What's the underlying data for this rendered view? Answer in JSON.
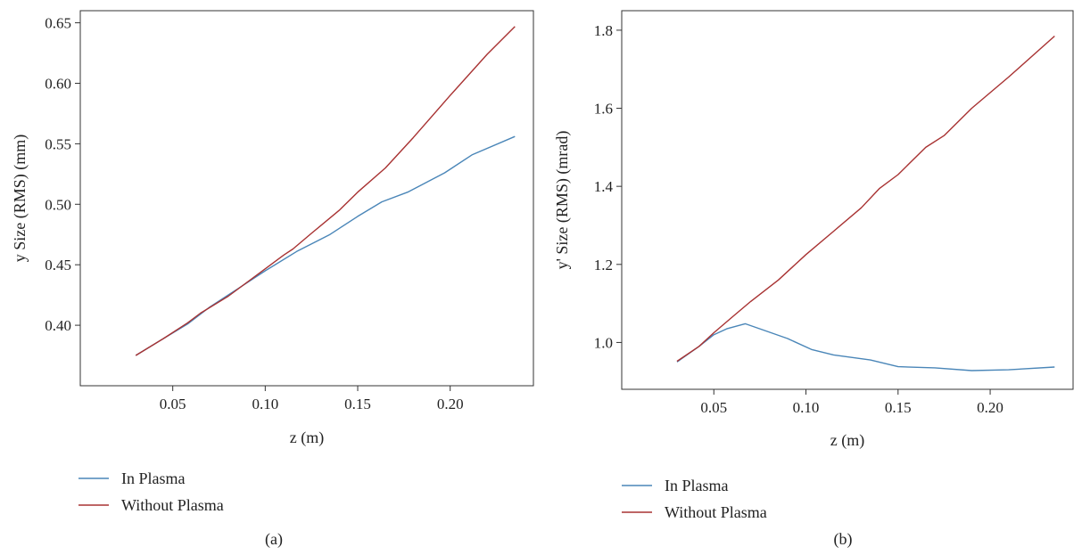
{
  "chart_data": [
    {
      "type": "line",
      "caption": "(a)",
      "xlabel": "z (m)",
      "ylabel": "y Size (RMS) (mm)",
      "xlim": [
        0.0,
        0.245
      ],
      "ylim": [
        0.35,
        0.66
      ],
      "xticks": [
        {
          "value": 0.05,
          "label": "0.05"
        },
        {
          "value": 0.1,
          "label": "0.10"
        },
        {
          "value": 0.15,
          "label": "0.15"
        },
        {
          "value": 0.2,
          "label": "0.20"
        }
      ],
      "yticks": [
        {
          "value": 0.4,
          "label": "0.40"
        },
        {
          "value": 0.45,
          "label": "0.45"
        },
        {
          "value": 0.5,
          "label": "0.50"
        },
        {
          "value": 0.55,
          "label": "0.55"
        },
        {
          "value": 0.6,
          "label": "0.60"
        },
        {
          "value": 0.65,
          "label": "0.65"
        }
      ],
      "grid": false,
      "legend_position": "bottom-left, outside plot",
      "series": [
        {
          "name": "In Plasma",
          "color": "#4a86b8",
          "x": [
            0.03,
            0.045,
            0.058,
            0.07,
            0.085,
            0.1,
            0.117,
            0.135,
            0.15,
            0.163,
            0.177,
            0.197,
            0.212,
            0.235
          ],
          "y": [
            0.375,
            0.389,
            0.401,
            0.415,
            0.43,
            0.445,
            0.461,
            0.475,
            0.49,
            0.502,
            0.51,
            0.526,
            0.541,
            0.556
          ]
        },
        {
          "name": "Without Plasma",
          "color": "#a83232",
          "x": [
            0.03,
            0.045,
            0.058,
            0.065,
            0.08,
            0.095,
            0.11,
            0.115,
            0.125,
            0.14,
            0.15,
            0.165,
            0.18,
            0.2,
            0.22,
            0.235
          ],
          "y": [
            0.375,
            0.389,
            0.402,
            0.41,
            0.424,
            0.441,
            0.458,
            0.463,
            0.476,
            0.495,
            0.51,
            0.53,
            0.555,
            0.59,
            0.624,
            0.647
          ]
        }
      ]
    },
    {
      "type": "line",
      "caption": "(b)",
      "xlabel": "z (m)",
      "ylabel": "y' Size (RMS) (mrad)",
      "xlim": [
        0.0,
        0.245
      ],
      "ylim": [
        0.88,
        1.85
      ],
      "xticks": [
        {
          "value": 0.05,
          "label": "0.05"
        },
        {
          "value": 0.1,
          "label": "0.10"
        },
        {
          "value": 0.15,
          "label": "0.15"
        },
        {
          "value": 0.2,
          "label": "0.20"
        }
      ],
      "yticks": [
        {
          "value": 1.0,
          "label": "1.0"
        },
        {
          "value": 1.2,
          "label": "1.2"
        },
        {
          "value": 1.4,
          "label": "1.4"
        },
        {
          "value": 1.6,
          "label": "1.6"
        },
        {
          "value": 1.8,
          "label": "1.8"
        }
      ],
      "grid": false,
      "legend_position": "bottom-left, outside plot",
      "series": [
        {
          "name": "In Plasma",
          "color": "#4a86b8",
          "x": [
            0.03,
            0.042,
            0.05,
            0.057,
            0.067,
            0.075,
            0.09,
            0.103,
            0.115,
            0.135,
            0.15,
            0.17,
            0.19,
            0.21,
            0.235
          ],
          "y": [
            0.95,
            0.99,
            1.02,
            1.035,
            1.048,
            1.035,
            1.01,
            0.982,
            0.968,
            0.955,
            0.938,
            0.935,
            0.928,
            0.93,
            0.937
          ]
        },
        {
          "name": "Without Plasma",
          "color": "#a83232",
          "x": [
            0.03,
            0.042,
            0.05,
            0.06,
            0.07,
            0.085,
            0.1,
            0.115,
            0.13,
            0.14,
            0.15,
            0.165,
            0.175,
            0.19,
            0.21,
            0.235
          ],
          "y": [
            0.952,
            0.99,
            1.025,
            1.065,
            1.105,
            1.16,
            1.225,
            1.285,
            1.345,
            1.395,
            1.43,
            1.5,
            1.53,
            1.6,
            1.68,
            1.785
          ]
        }
      ]
    }
  ]
}
